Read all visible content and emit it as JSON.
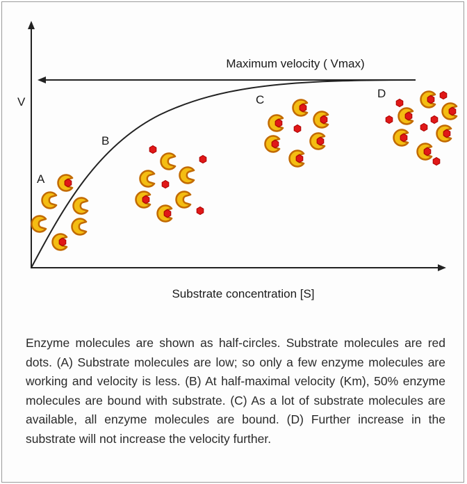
{
  "diagram": {
    "y_axis_label": "V",
    "x_axis_label": "Substrate concentration [S]",
    "vmax_label": "Maximum velocity ( Vmax)",
    "stage_labels": [
      "A",
      "B",
      "C",
      "D"
    ]
  },
  "caption": "Enzyme molecules are shown as half-circles. Substrate molecules are red dots. (A) Substrate molecules are low; so only a few enzyme molecules are working and velocity is less. (B) At half-maximal velocity (Km), 50% enzyme molecules are bound with substrate. (C) As a lot of substrate molecules are available, all enzyme molecules are bound. (D) Further increase in the substrate will not increase the velocity further."
}
